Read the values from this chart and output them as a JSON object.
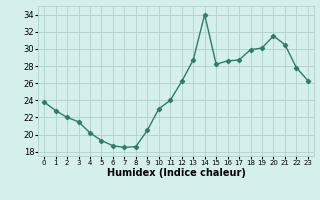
{
  "x": [
    0,
    1,
    2,
    3,
    4,
    5,
    6,
    7,
    8,
    9,
    10,
    11,
    12,
    13,
    14,
    15,
    16,
    17,
    18,
    19,
    20,
    21,
    22,
    23
  ],
  "y": [
    23.8,
    22.8,
    22.0,
    21.5,
    20.2,
    19.3,
    18.7,
    18.5,
    18.6,
    20.5,
    23.0,
    24.0,
    26.2,
    28.7,
    34.0,
    28.2,
    28.6,
    28.7,
    29.9,
    30.1,
    31.5,
    30.5,
    27.8,
    26.3
  ],
  "xlabel": "Humidex (Indice chaleur)",
  "xlim": [
    -0.5,
    23.5
  ],
  "ylim": [
    17.5,
    35.0
  ],
  "yticks": [
    18,
    20,
    22,
    24,
    26,
    28,
    30,
    32,
    34
  ],
  "xtick_labels": [
    "0",
    "1",
    "2",
    "3",
    "4",
    "5",
    "6",
    "7",
    "8",
    "9",
    "10",
    "11",
    "12",
    "13",
    "14",
    "15",
    "16",
    "17",
    "18",
    "19",
    "20",
    "21",
    "22",
    "23"
  ],
  "line_color": "#2d7d6d",
  "bg_color": "#d5efec",
  "grid_color": "#b5d5d2",
  "marker": "D",
  "marker_size": 2.2,
  "line_width": 1.0,
  "tick_labelsize": 6.0,
  "xlabel_fontsize": 7.0
}
